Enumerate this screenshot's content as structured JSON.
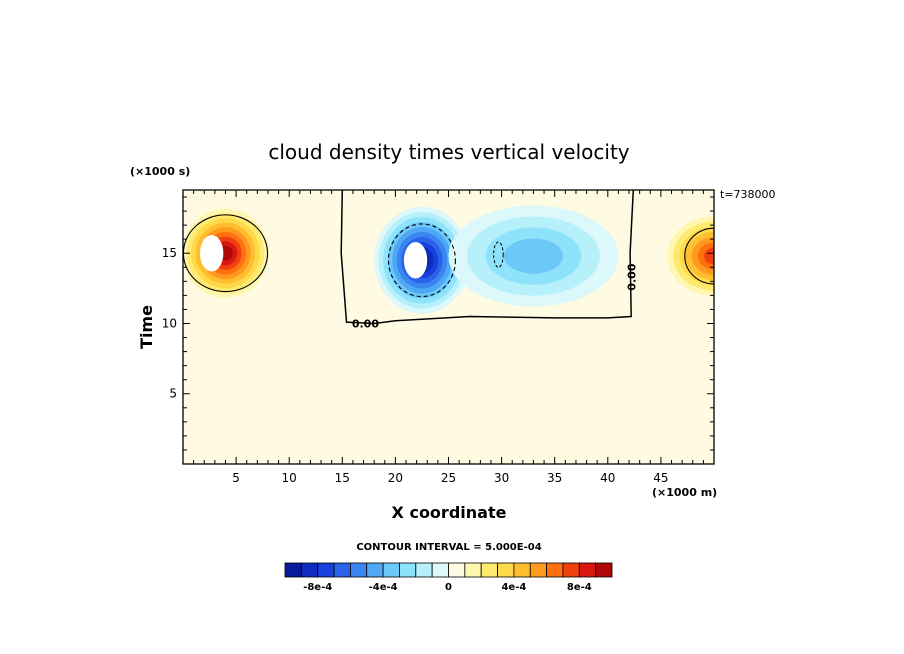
{
  "chart_data": {
    "type": "heatmap",
    "title": "cloud density times vertical velocity",
    "xlabel": "X coordinate",
    "ylabel": "Time",
    "x_units": "(×1000 m)",
    "y_units": "(×1000 s)",
    "timestamp": "t=738000",
    "xlim": [
      0,
      50
    ],
    "ylim": [
      0,
      19.5
    ],
    "x_ticks": [
      5,
      10,
      15,
      20,
      25,
      30,
      35,
      40,
      45
    ],
    "y_ticks": [
      5,
      10,
      15
    ],
    "contour_interval": "CONTOUR INTERVAL = 5.000E-04",
    "contour_zero_label": "0.00",
    "colorbar": {
      "levels": [
        -0.001,
        -0.0009,
        -0.0008,
        -0.0007,
        -0.0006,
        -0.0005,
        -0.0004,
        -0.0003,
        -0.0002,
        -0.0001,
        0,
        0.0001,
        0.0002,
        0.0003,
        0.0004,
        0.0005,
        0.0006,
        0.0007,
        0.0008,
        0.0009,
        0.001
      ],
      "colors": [
        "#0a1a9c",
        "#0f2cc0",
        "#1840dc",
        "#2a62ea",
        "#3a86f0",
        "#4fa8f5",
        "#6cc8f8",
        "#8ee2fa",
        "#b6f0fb",
        "#dcf8fb",
        "#fffbe2",
        "#fff6b0",
        "#ffea70",
        "#ffd94a",
        "#ffbe30",
        "#ff9a20",
        "#ff7010",
        "#f04010",
        "#d81810",
        "#b00808"
      ],
      "tick_values": [
        -0.0008,
        -0.0004,
        0,
        0.0004,
        0.0008
      ],
      "tick_labels": [
        "-8e-4",
        "-4e-4",
        "0",
        "4e-4",
        "8e-4"
      ]
    },
    "background_value": 0,
    "features": [
      {
        "kind": "positive-max",
        "x_center": 4,
        "y_center": 15,
        "x_halfwidth": 4.5,
        "y_halfwidth": 3.5,
        "peak": 0.001
      },
      {
        "kind": "positive-wrap",
        "x_center": 50,
        "y_center": 14.8,
        "x_halfwidth": 5,
        "y_halfwidth": 3.2,
        "peak": 0.00075
      },
      {
        "kind": "negative-min",
        "x_center": 22.5,
        "y_center": 14.5,
        "x_halfwidth": 4.5,
        "y_halfwidth": 3.8,
        "peak": -0.001
      },
      {
        "kind": "negative-weak",
        "x_center": 33,
        "y_center": 14.8,
        "x_halfwidth": 8,
        "y_halfwidth": 3.6,
        "peak": -0.00035
      }
    ]
  }
}
